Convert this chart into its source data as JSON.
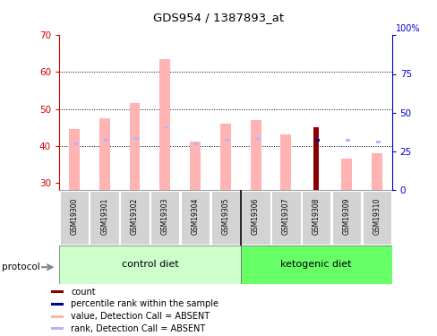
{
  "title": "GDS954 / 1387893_at",
  "samples": [
    "GSM19300",
    "GSM19301",
    "GSM19302",
    "GSM19303",
    "GSM19304",
    "GSM19305",
    "GSM19306",
    "GSM19307",
    "GSM19308",
    "GSM19309",
    "GSM19310"
  ],
  "value_absent": [
    44.5,
    47.5,
    51.5,
    63.5,
    41.0,
    46.0,
    47.0,
    43.0,
    null,
    36.5,
    38.0
  ],
  "rank_absent_left": [
    40.5,
    41.5,
    42.0,
    45.0,
    40.5,
    41.5,
    42.0,
    null,
    null,
    41.5,
    41.0
  ],
  "value_present": [
    null,
    null,
    null,
    null,
    null,
    null,
    null,
    null,
    45.0,
    null,
    null
  ],
  "rank_present_left": [
    null,
    null,
    null,
    null,
    null,
    null,
    null,
    null,
    41.5,
    null,
    null
  ],
  "ylim_left": [
    28,
    70
  ],
  "ylim_right": [
    0,
    100
  ],
  "yticks_left": [
    30,
    40,
    50,
    60,
    70
  ],
  "yticks_right": [
    0,
    25,
    50,
    75,
    100
  ],
  "bar_bottom": 28,
  "control_diet_indices": [
    0,
    1,
    2,
    3,
    4,
    5
  ],
  "ketogenic_diet_indices": [
    6,
    7,
    8,
    9,
    10
  ],
  "control_label": "control diet",
  "ketogenic_label": "ketogenic diet",
  "protocol_label": "protocol",
  "color_value_absent": "#ffb3b3",
  "color_rank_absent": "#b3b3ff",
  "color_value_present": "#8b0000",
  "color_rank_present": "#00008b",
  "color_control_bg": "#ccffcc",
  "color_ketogenic_bg": "#66ff66",
  "color_sample_bg": "#d3d3d3",
  "left_axis_color": "#cc0000",
  "right_axis_color": "#0000cc",
  "grid_color": "#000000",
  "bar_width": 0.35,
  "rank_bar_width": 0.15,
  "rank_bar_height": 1.5
}
